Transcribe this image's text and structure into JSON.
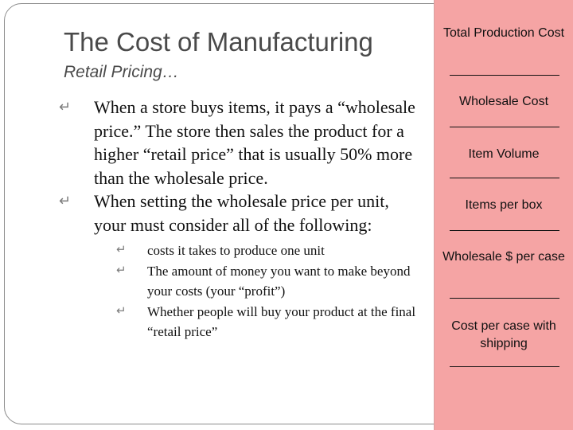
{
  "slide": {
    "title": "The Cost of Manufacturing",
    "subtitle": "Retail Pricing…",
    "bullets": [
      {
        "text": "When a store buys items, it pays a “wholesale price.”  The store then sales the product for a higher “retail price” that is usually 50% more than the wholesale price."
      },
      {
        "text": "When setting the wholesale price per unit, your must consider all of the following:"
      }
    ],
    "sub_bullets": [
      {
        "text": "costs it takes to produce one unit"
      },
      {
        "text": "The amount of money you want to make beyond your costs (your “profit”)"
      },
      {
        "text": "Whether people will buy your product at the final “retail price”"
      }
    ]
  },
  "sidebar": {
    "items": [
      {
        "label": "Total Production Cost"
      },
      {
        "label": "Wholesale Cost"
      },
      {
        "label": "Item Volume"
      },
      {
        "label": "Items per box"
      },
      {
        "label": "Wholesale $ per case"
      },
      {
        "label": "Cost per case with shipping"
      }
    ]
  },
  "colors": {
    "sidebar_background": "#f5a4a4",
    "title_text": "#4a4a4a",
    "bullet_marker": "#7c7c7c"
  },
  "icons": {
    "bullet": "curved-arrow-bullet-icon"
  }
}
